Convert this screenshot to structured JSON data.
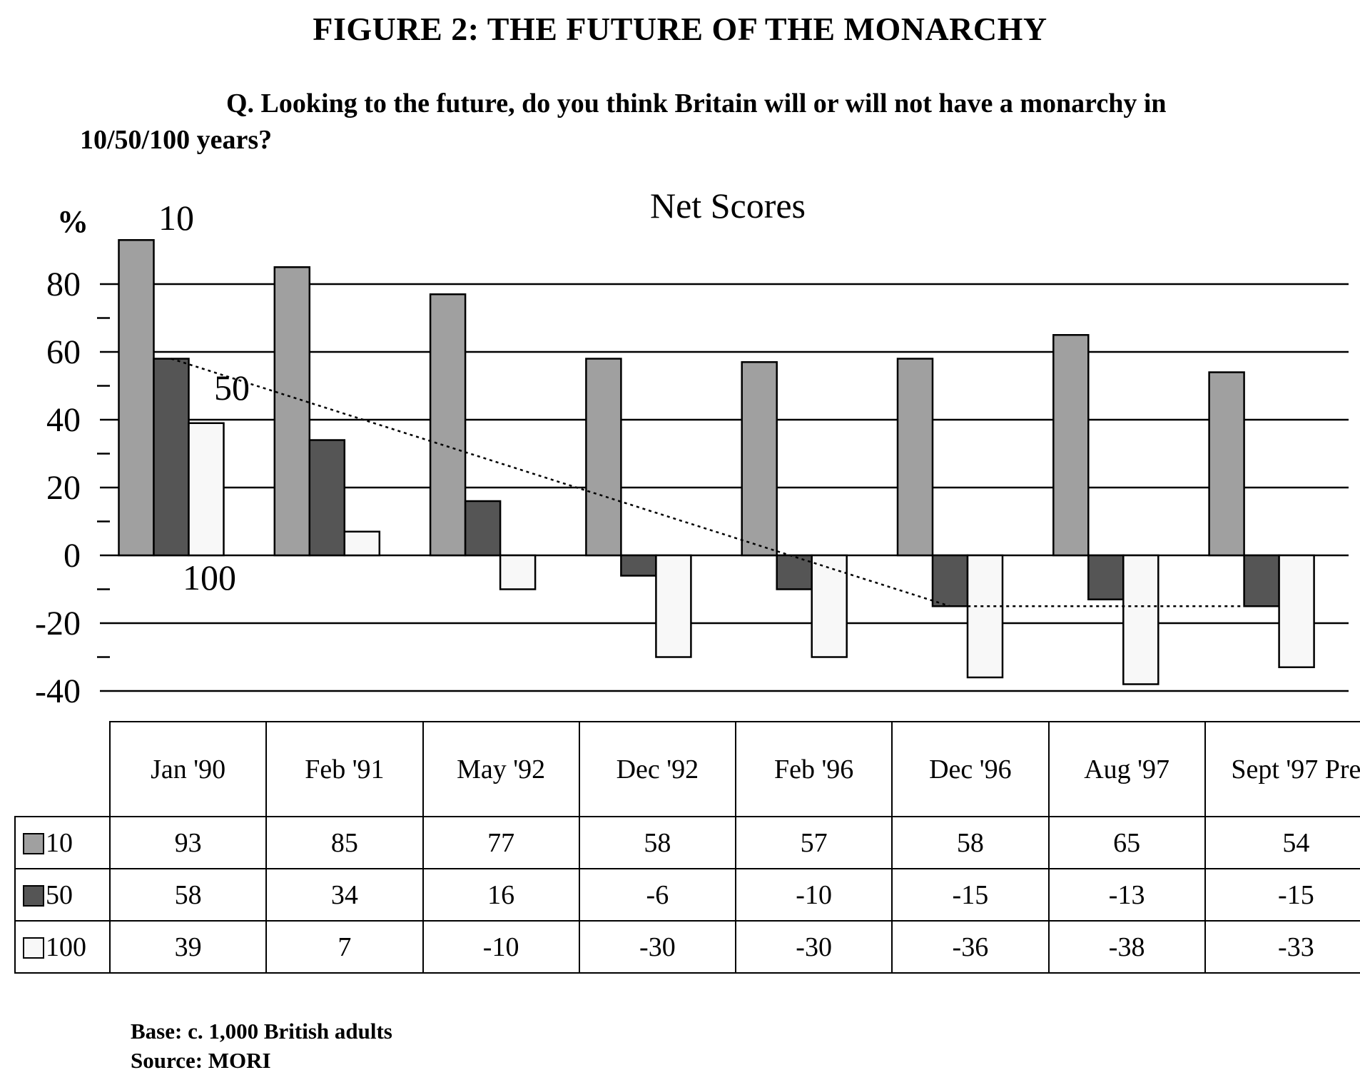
{
  "figure_title": "FIGURE 2: THE FUTURE OF THE MONARCHY",
  "question": "Q. Looking to the future, do you think Britain will or will not have a monarchy in 10/50/100 years?",
  "footer": {
    "base": "Base: c. 1,000 British adults",
    "source": "Source: MORI"
  },
  "colors": {
    "series_10": "#a0a0a0",
    "series_50": "#555555",
    "series_100": "#f8f8f8",
    "gridline": "#000000"
  },
  "chart_data": {
    "type": "bar",
    "title": "Net Scores",
    "ylabel": "%",
    "ylim": [
      -40,
      90
    ],
    "yticks": [
      "80",
      "60",
      "40",
      "20",
      "0",
      "-20",
      "-40"
    ],
    "grid": true,
    "categories": [
      "Jan '90",
      "Feb '91",
      "May '92",
      "Dec '92",
      "Feb '96",
      "Dec '96",
      "Aug '97",
      "Sept '97 Pre"
    ],
    "series": [
      {
        "name": "10",
        "values": [
          93,
          85,
          77,
          58,
          57,
          58,
          65,
          54
        ]
      },
      {
        "name": "50",
        "values": [
          58,
          34,
          16,
          -6,
          -10,
          -15,
          -13,
          -15
        ]
      },
      {
        "name": "100",
        "values": [
          39,
          7,
          -10,
          -30,
          -30,
          -36,
          -38,
          -33
        ]
      }
    ],
    "annotations": [
      "10",
      "50",
      "100"
    ],
    "trend_line": {
      "series": "50",
      "points": [
        [
          0,
          58
        ],
        [
          5,
          -15
        ],
        [
          7,
          -15
        ]
      ]
    }
  }
}
